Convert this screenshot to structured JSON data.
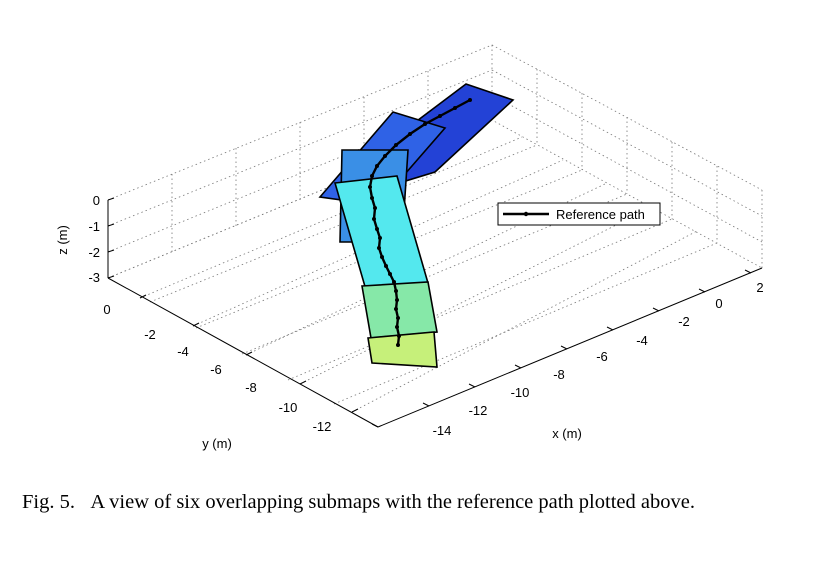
{
  "chart_data": {
    "type": "3d-patches-with-path",
    "xlabel": "x (m)",
    "ylabel": "y (m)",
    "zlabel": "z (m)",
    "x_ticks": [
      "-14",
      "-12",
      "-10",
      "-8",
      "-6",
      "-4",
      "-2",
      "0",
      "2"
    ],
    "y_ticks": [
      "0",
      "-2",
      "-4",
      "-6",
      "-8",
      "-10",
      "-12"
    ],
    "z_ticks": [
      "0",
      "-1",
      "-2",
      "-3"
    ],
    "grid": true,
    "legend": {
      "label": "Reference path",
      "placement": "right"
    },
    "submaps": [
      {
        "color": "#2342d6"
      },
      {
        "color": "#2f62e6"
      },
      {
        "color": "#3a8fe6"
      },
      {
        "color": "#54e8ee"
      },
      {
        "color": "#86e8a8"
      },
      {
        "color": "#c6f07a"
      }
    ]
  },
  "caption": {
    "label": "Fig. 5.",
    "text": "A view of six overlapping submaps with the reference path plotted above."
  }
}
